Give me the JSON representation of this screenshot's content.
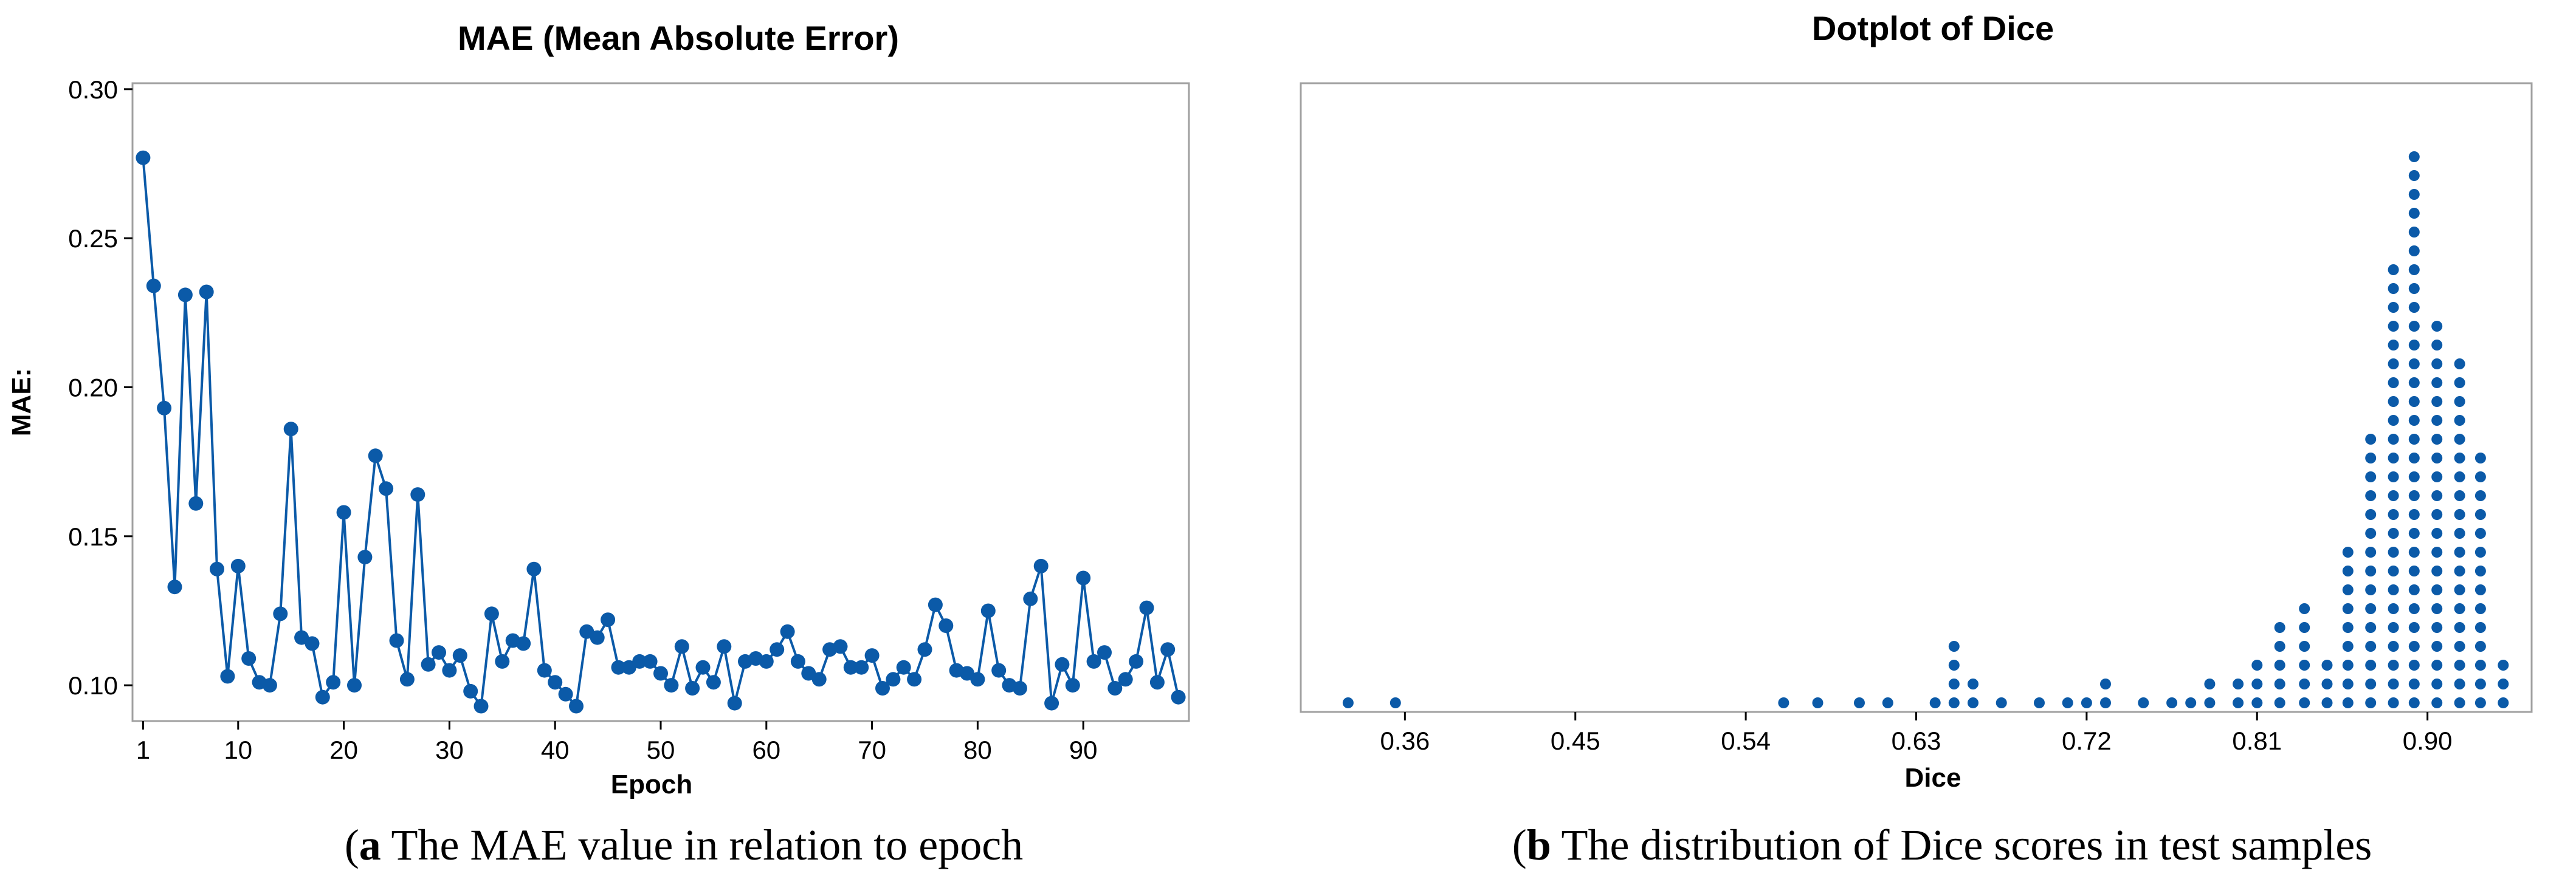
{
  "colors": {
    "marker": "#0B5AA8",
    "line": "#0B5AA8",
    "frame": "#A0A0A0"
  },
  "captions": {
    "a": {
      "letter": "a",
      "text": " The MAE value in relation to epoch"
    },
    "b": {
      "letter": "b",
      "text": " The distribution of Dice scores in test samples"
    }
  },
  "chart_data": [
    {
      "type": "line",
      "title": "MAE (Mean Absolute Error)",
      "xlabel": "Epoch",
      "ylabel": "MAE:",
      "xlim": [
        0,
        100
      ],
      "ylim": [
        0.088,
        0.302
      ],
      "x_ticks": [
        1,
        10,
        20,
        30,
        40,
        50,
        60,
        70,
        80,
        90
      ],
      "x_tick_labels": [
        "1",
        "10",
        "20",
        "30",
        "40",
        "50",
        "60",
        "70",
        "80",
        "90"
      ],
      "y_ticks": [
        0.1,
        0.15,
        0.2,
        0.25,
        0.3
      ],
      "y_tick_labels": [
        "0.10",
        "0.15",
        "0.20",
        "0.25",
        "0.30"
      ],
      "grid": false,
      "markers": true,
      "x": [
        1,
        2,
        3,
        4,
        5,
        6,
        7,
        8,
        9,
        10,
        11,
        12,
        13,
        14,
        15,
        16,
        17,
        18,
        19,
        20,
        21,
        22,
        23,
        24,
        25,
        26,
        27,
        28,
        29,
        30,
        31,
        32,
        33,
        34,
        35,
        36,
        37,
        38,
        39,
        40,
        41,
        42,
        43,
        44,
        45,
        46,
        47,
        48,
        49,
        50,
        51,
        52,
        53,
        54,
        55,
        56,
        57,
        58,
        59,
        60,
        61,
        62,
        63,
        64,
        65,
        66,
        67,
        68,
        69,
        70,
        71,
        72,
        73,
        74,
        75,
        76,
        77,
        78,
        79,
        80,
        81,
        82,
        83,
        84,
        85,
        86,
        87,
        88,
        89,
        90,
        91,
        92,
        93,
        94,
        95,
        96,
        97,
        98,
        99
      ],
      "y": [
        0.277,
        0.234,
        0.193,
        0.133,
        0.231,
        0.161,
        0.232,
        0.139,
        0.103,
        0.14,
        0.109,
        0.101,
        0.1,
        0.124,
        0.186,
        0.116,
        0.114,
        0.096,
        0.101,
        0.158,
        0.1,
        0.143,
        0.177,
        0.166,
        0.115,
        0.102,
        0.164,
        0.107,
        0.111,
        0.105,
        0.11,
        0.098,
        0.093,
        0.124,
        0.108,
        0.115,
        0.114,
        0.139,
        0.105,
        0.101,
        0.097,
        0.093,
        0.118,
        0.116,
        0.122,
        0.106,
        0.106,
        0.108,
        0.108,
        0.104,
        0.1,
        0.113,
        0.099,
        0.106,
        0.101,
        0.113,
        0.094,
        0.108,
        0.109,
        0.108,
        0.112,
        0.118,
        0.108,
        0.104,
        0.102,
        0.112,
        0.113,
        0.106,
        0.106,
        0.11,
        0.099,
        0.102,
        0.106,
        0.102,
        0.112,
        0.127,
        0.12,
        0.105,
        0.104,
        0.102,
        0.125,
        0.105,
        0.1,
        0.099,
        0.129,
        0.14,
        0.094,
        0.107,
        0.1,
        0.136,
        0.108,
        0.111,
        0.099,
        0.102,
        0.108,
        0.126,
        0.101,
        0.112,
        0.096
      ]
    },
    {
      "type": "scatter",
      "subtype": "dotplot",
      "title": "Dotplot of Dice",
      "xlabel": "Dice",
      "xlim": [
        0.305,
        0.955
      ],
      "x_ticks": [
        0.36,
        0.45,
        0.54,
        0.63,
        0.72,
        0.81,
        0.9
      ],
      "x_tick_labels": [
        "0.36",
        "0.45",
        "0.54",
        "0.63",
        "0.72",
        "0.81",
        "0.90"
      ],
      "grid": false,
      "bins": [
        0.33,
        0.355,
        0.56,
        0.578,
        0.6,
        0.615,
        0.64,
        0.65,
        0.66,
        0.675,
        0.695,
        0.71,
        0.72,
        0.73,
        0.75,
        0.765,
        0.775,
        0.785,
        0.8,
        0.81,
        0.822,
        0.835,
        0.847,
        0.858,
        0.87,
        0.882,
        0.893,
        0.905,
        0.917,
        0.928,
        0.94
      ],
      "counts": [
        1,
        1,
        1,
        1,
        1,
        1,
        1,
        4,
        2,
        1,
        1,
        1,
        1,
        2,
        1,
        1,
        1,
        2,
        2,
        3,
        5,
        6,
        3,
        9,
        15,
        24,
        30,
        21,
        19,
        14,
        3
      ]
    }
  ]
}
